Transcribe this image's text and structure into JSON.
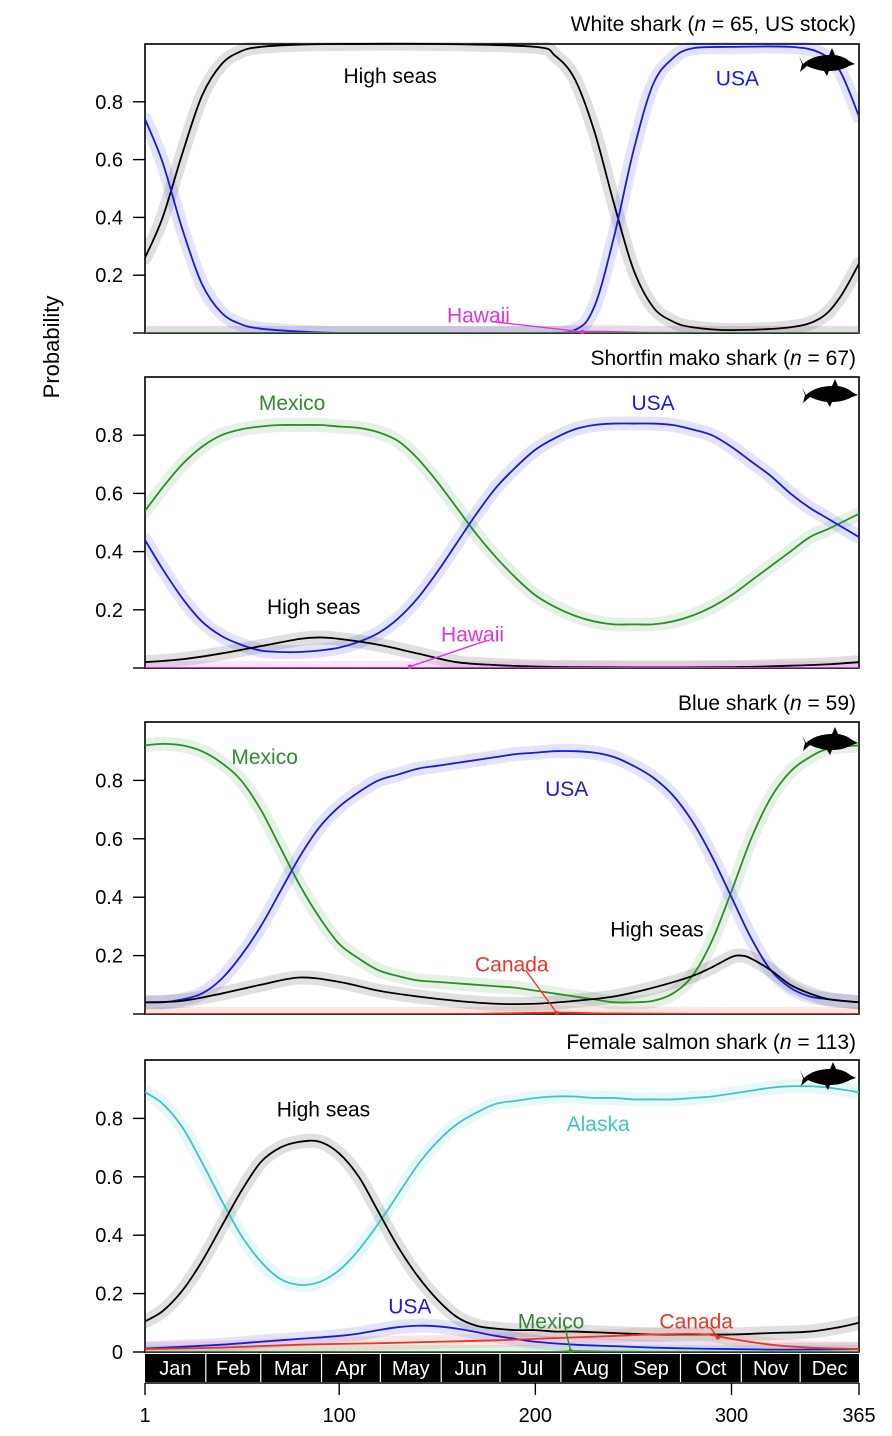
{
  "figure": {
    "ylabel": "Probability",
    "month_labels": [
      "Jan",
      "Feb",
      "Mar",
      "Apr",
      "May",
      "Jun",
      "Jul",
      "Aug",
      "Sep",
      "Oct",
      "Nov",
      "Dec"
    ],
    "x_ticks": [
      1,
      100,
      200,
      300,
      365
    ],
    "xlim": [
      1,
      365
    ]
  },
  "colors": {
    "high_seas": "#000000",
    "usa": "#1a1adf",
    "mexico": "#2e8b2e",
    "hawaii": "#e034e0",
    "canada": "#e8362a",
    "alaska": "#3fc4c4",
    "month_bar": "#000000"
  },
  "chart_data": [
    {
      "type": "line",
      "title_pre": "White shark (",
      "title_n": "n",
      "title_post": " = 65, US stock)",
      "ylim": [
        0,
        1
      ],
      "yticks": [
        "0.2",
        "0.4",
        "0.6",
        "0.8"
      ],
      "series": [
        {
          "name": "High seas",
          "color": "high_seas",
          "x": [
            1,
            10,
            20,
            30,
            40,
            50,
            60,
            80,
            100,
            150,
            200,
            210,
            220,
            230,
            240,
            250,
            260,
            270,
            280,
            300,
            330,
            345,
            355,
            365
          ],
          "y": [
            0.26,
            0.4,
            0.62,
            0.82,
            0.93,
            0.975,
            0.99,
            0.998,
            1.0,
            1.0,
            0.99,
            0.96,
            0.88,
            0.7,
            0.45,
            0.22,
            0.09,
            0.04,
            0.02,
            0.01,
            0.02,
            0.05,
            0.12,
            0.24
          ]
        },
        {
          "name": "USA",
          "color": "usa",
          "x": [
            1,
            10,
            20,
            30,
            40,
            50,
            60,
            80,
            100,
            150,
            200,
            220,
            230,
            240,
            250,
            260,
            270,
            280,
            300,
            330,
            345,
            355,
            365
          ],
          "y": [
            0.74,
            0.59,
            0.36,
            0.17,
            0.07,
            0.03,
            0.015,
            0.005,
            0.0,
            0.0,
            0.0,
            0.01,
            0.09,
            0.33,
            0.63,
            0.86,
            0.95,
            0.985,
            0.99,
            0.99,
            0.97,
            0.91,
            0.75
          ]
        },
        {
          "name": "Hawaii",
          "color": "hawaii",
          "x": [
            1,
            100,
            200,
            220,
            230,
            240,
            260,
            300,
            365
          ],
          "y": [
            0,
            0,
            0,
            0.004,
            0.005,
            0.004,
            0.001,
            0,
            0
          ]
        },
        {
          "name": "",
          "color": "mexico",
          "x": [
            1,
            100,
            200,
            300,
            365
          ],
          "y": [
            0,
            0,
            0,
            0,
            0
          ]
        }
      ],
      "labels": [
        {
          "text": "High seas",
          "series": "High seas",
          "x": 126,
          "y": 0.89
        },
        {
          "text": "USA",
          "series": "USA",
          "x": 303,
          "y": 0.88
        },
        {
          "text": "Hawaii",
          "series": "Hawaii",
          "x": 171,
          "y": 0.06,
          "pointer": [
            224,
            0.004
          ]
        }
      ]
    },
    {
      "type": "line",
      "title_pre": "Shortfin mako shark (",
      "title_n": "n",
      "title_post": " = 67)",
      "ylim": [
        0,
        1
      ],
      "yticks": [
        "0.2",
        "0.4",
        "0.6",
        "0.8"
      ],
      "series": [
        {
          "name": "Mexico",
          "color": "mexico",
          "x": [
            1,
            10,
            20,
            30,
            40,
            50,
            60,
            70,
            80,
            90,
            100,
            110,
            120,
            130,
            140,
            150,
            160,
            170,
            180,
            190,
            200,
            210,
            220,
            230,
            240,
            250,
            260,
            270,
            280,
            290,
            300,
            310,
            320,
            330,
            340,
            350,
            365
          ],
          "y": [
            0.54,
            0.62,
            0.7,
            0.76,
            0.8,
            0.82,
            0.83,
            0.835,
            0.835,
            0.835,
            0.83,
            0.825,
            0.81,
            0.78,
            0.72,
            0.64,
            0.55,
            0.46,
            0.38,
            0.31,
            0.25,
            0.21,
            0.18,
            0.16,
            0.15,
            0.15,
            0.15,
            0.16,
            0.18,
            0.21,
            0.25,
            0.3,
            0.35,
            0.4,
            0.45,
            0.48,
            0.53
          ]
        },
        {
          "name": "USA",
          "color": "usa",
          "x": [
            1,
            10,
            20,
            30,
            40,
            50,
            60,
            70,
            80,
            90,
            100,
            110,
            120,
            130,
            140,
            150,
            160,
            170,
            180,
            190,
            200,
            210,
            220,
            230,
            240,
            250,
            260,
            270,
            280,
            290,
            300,
            310,
            320,
            330,
            340,
            350,
            365
          ],
          "y": [
            0.44,
            0.34,
            0.24,
            0.16,
            0.11,
            0.08,
            0.06,
            0.055,
            0.055,
            0.06,
            0.07,
            0.09,
            0.12,
            0.17,
            0.24,
            0.33,
            0.43,
            0.53,
            0.62,
            0.69,
            0.75,
            0.79,
            0.82,
            0.835,
            0.84,
            0.84,
            0.84,
            0.835,
            0.82,
            0.8,
            0.76,
            0.71,
            0.66,
            0.6,
            0.55,
            0.51,
            0.45
          ]
        },
        {
          "name": "High seas",
          "color": "high_seas",
          "x": [
            1,
            20,
            40,
            60,
            80,
            90,
            100,
            120,
            140,
            160,
            180,
            200,
            220,
            250,
            300,
            330,
            350,
            365
          ],
          "y": [
            0.02,
            0.03,
            0.05,
            0.075,
            0.1,
            0.105,
            0.1,
            0.08,
            0.05,
            0.02,
            0.01,
            0.005,
            0.003,
            0.002,
            0.003,
            0.008,
            0.013,
            0.02
          ]
        },
        {
          "name": "Hawaii",
          "color": "hawaii",
          "x": [
            1,
            100,
            200,
            300,
            365
          ],
          "y": [
            0,
            0,
            0,
            0,
            0
          ]
        }
      ],
      "labels": [
        {
          "text": "Mexico",
          "series": "Mexico",
          "x": 76,
          "y": 0.91
        },
        {
          "text": "USA",
          "series": "USA",
          "x": 260,
          "y": 0.91
        },
        {
          "text": "High seas",
          "series": "High seas",
          "x": 87,
          "y": 0.21
        },
        {
          "text": "Hawaii",
          "series": "Hawaii",
          "x": 168,
          "y": 0.115,
          "pointer": [
            136,
            0.005
          ]
        }
      ]
    },
    {
      "type": "line",
      "title_pre": "Blue shark (",
      "title_n": "n",
      "title_post": " = 59)",
      "ylim": [
        0,
        1
      ],
      "yticks": [
        "0.2",
        "0.4",
        "0.6",
        "0.8"
      ],
      "series": [
        {
          "name": "Mexico",
          "color": "mexico",
          "x": [
            1,
            10,
            20,
            30,
            40,
            50,
            60,
            70,
            80,
            90,
            100,
            110,
            120,
            130,
            140,
            150,
            160,
            170,
            180,
            190,
            200,
            210,
            220,
            230,
            240,
            250,
            260,
            270,
            280,
            290,
            300,
            310,
            320,
            330,
            340,
            350,
            365
          ],
          "y": [
            0.92,
            0.925,
            0.92,
            0.9,
            0.86,
            0.8,
            0.7,
            0.57,
            0.44,
            0.33,
            0.24,
            0.19,
            0.15,
            0.13,
            0.115,
            0.11,
            0.105,
            0.1,
            0.095,
            0.09,
            0.08,
            0.07,
            0.06,
            0.05,
            0.04,
            0.04,
            0.045,
            0.07,
            0.13,
            0.25,
            0.42,
            0.6,
            0.74,
            0.83,
            0.88,
            0.91,
            0.92
          ]
        },
        {
          "name": "USA",
          "color": "usa",
          "x": [
            1,
            10,
            20,
            30,
            40,
            50,
            60,
            70,
            80,
            90,
            100,
            110,
            120,
            130,
            140,
            150,
            160,
            170,
            180,
            190,
            200,
            210,
            220,
            230,
            240,
            250,
            260,
            270,
            280,
            290,
            300,
            310,
            320,
            330,
            340,
            350,
            365
          ],
          "y": [
            0.04,
            0.04,
            0.05,
            0.07,
            0.12,
            0.2,
            0.3,
            0.42,
            0.54,
            0.64,
            0.71,
            0.76,
            0.8,
            0.82,
            0.84,
            0.85,
            0.86,
            0.87,
            0.88,
            0.89,
            0.895,
            0.9,
            0.9,
            0.895,
            0.88,
            0.85,
            0.81,
            0.75,
            0.66,
            0.54,
            0.4,
            0.26,
            0.15,
            0.09,
            0.06,
            0.05,
            0.04
          ]
        },
        {
          "name": "High seas",
          "color": "high_seas",
          "x": [
            1,
            20,
            40,
            60,
            80,
            100,
            120,
            140,
            160,
            180,
            200,
            220,
            240,
            260,
            280,
            290,
            300,
            305,
            310,
            320,
            330,
            340,
            350,
            365
          ],
          "y": [
            0.04,
            0.045,
            0.07,
            0.1,
            0.125,
            0.11,
            0.08,
            0.06,
            0.045,
            0.035,
            0.035,
            0.045,
            0.06,
            0.09,
            0.13,
            0.16,
            0.195,
            0.2,
            0.19,
            0.15,
            0.1,
            0.07,
            0.05,
            0.04
          ]
        },
        {
          "name": "Canada",
          "color": "canada",
          "x": [
            1,
            150,
            180,
            200,
            210,
            220,
            240,
            300,
            365
          ],
          "y": [
            0,
            0,
            0.002,
            0.004,
            0.005,
            0.004,
            0.002,
            0,
            0
          ]
        }
      ],
      "labels": [
        {
          "text": "Mexico",
          "series": "Mexico",
          "x": 62,
          "y": 0.88
        },
        {
          "text": "USA",
          "series": "USA",
          "x": 216,
          "y": 0.77
        },
        {
          "text": "High seas",
          "series": "High seas",
          "x": 262,
          "y": 0.29
        },
        {
          "text": "Canada",
          "series": "Canada",
          "x": 188,
          "y": 0.17,
          "pointer": [
            211,
            0.003
          ]
        }
      ]
    },
    {
      "type": "line",
      "title_pre": "Female salmon shark (",
      "title_n": "n",
      "title_post": " = 113)",
      "ylim": [
        0,
        1
      ],
      "yticks": [
        "0",
        "0.2",
        "0.4",
        "0.6",
        "0.8"
      ],
      "series": [
        {
          "name": "Alaska",
          "color": "alaska",
          "x": [
            1,
            10,
            20,
            30,
            40,
            50,
            60,
            70,
            80,
            90,
            100,
            110,
            120,
            130,
            140,
            150,
            160,
            170,
            180,
            190,
            200,
            210,
            220,
            230,
            240,
            250,
            260,
            270,
            280,
            290,
            300,
            310,
            320,
            330,
            340,
            350,
            365
          ],
          "y": [
            0.89,
            0.85,
            0.77,
            0.65,
            0.52,
            0.4,
            0.31,
            0.25,
            0.23,
            0.24,
            0.28,
            0.35,
            0.44,
            0.54,
            0.64,
            0.72,
            0.78,
            0.82,
            0.85,
            0.86,
            0.87,
            0.875,
            0.875,
            0.87,
            0.87,
            0.865,
            0.865,
            0.865,
            0.87,
            0.875,
            0.885,
            0.895,
            0.905,
            0.91,
            0.91,
            0.905,
            0.89
          ]
        },
        {
          "name": "High seas",
          "color": "high_seas",
          "x": [
            1,
            10,
            20,
            30,
            40,
            50,
            60,
            70,
            80,
            90,
            100,
            110,
            120,
            130,
            140,
            150,
            160,
            170,
            180,
            190,
            200,
            210,
            220,
            240,
            260,
            280,
            300,
            320,
            340,
            355,
            365
          ],
          "y": [
            0.105,
            0.14,
            0.21,
            0.31,
            0.43,
            0.55,
            0.65,
            0.7,
            0.72,
            0.72,
            0.68,
            0.6,
            0.48,
            0.36,
            0.26,
            0.18,
            0.12,
            0.09,
            0.08,
            0.075,
            0.075,
            0.07,
            0.07,
            0.065,
            0.06,
            0.06,
            0.06,
            0.065,
            0.07,
            0.085,
            0.1
          ]
        },
        {
          "name": "USA",
          "color": "usa",
          "x": [
            1,
            20,
            40,
            60,
            80,
            100,
            110,
            120,
            130,
            140,
            150,
            160,
            170,
            180,
            190,
            200,
            220,
            240,
            260,
            280,
            300,
            330,
            365
          ],
          "y": [
            0.012,
            0.018,
            0.025,
            0.035,
            0.045,
            0.055,
            0.063,
            0.075,
            0.085,
            0.09,
            0.088,
            0.08,
            0.068,
            0.055,
            0.045,
            0.035,
            0.025,
            0.02,
            0.015,
            0.012,
            0.01,
            0.008,
            0.01
          ]
        },
        {
          "name": "Canada",
          "color": "canada",
          "x": [
            1,
            40,
            80,
            120,
            150,
            180,
            200,
            220,
            240,
            260,
            280,
            290,
            300,
            320,
            340,
            365
          ],
          "y": [
            0.01,
            0.015,
            0.025,
            0.03,
            0.035,
            0.04,
            0.045,
            0.05,
            0.055,
            0.06,
            0.062,
            0.058,
            0.045,
            0.025,
            0.015,
            0.01
          ]
        },
        {
          "name": "Mexico",
          "color": "mexico",
          "x": [
            1,
            100,
            200,
            220,
            240,
            300,
            365
          ],
          "y": [
            0,
            0,
            0,
            0.003,
            0.001,
            0,
            0
          ]
        }
      ],
      "labels": [
        {
          "text": "High seas",
          "series": "High seas",
          "x": 92,
          "y": 0.83
        },
        {
          "text": "Alaska",
          "series": "Alaska",
          "x": 232,
          "y": 0.78
        },
        {
          "text": "USA",
          "series": "USA",
          "x": 136,
          "y": 0.155
        },
        {
          "text": "Mexico",
          "series": "Mexico",
          "x": 208,
          "y": 0.105,
          "pointer": [
            218,
            0.003
          ]
        },
        {
          "text": "Canada",
          "series": "Canada",
          "x": 282,
          "y": 0.105,
          "pointer": [
            293,
            0.05
          ]
        }
      ]
    }
  ]
}
